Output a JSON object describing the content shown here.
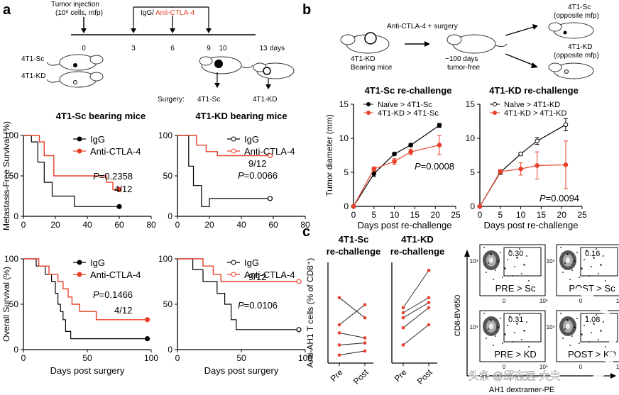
{
  "panels": {
    "a": "a",
    "b": "b",
    "c": "c"
  },
  "timeline": {
    "tumor_injection": "Tumor injection",
    "cells_line": "(10⁶ cells, mfp)",
    "treatment_igg": "IgG/",
    "treatment_anti": "Anti-CTLA-4",
    "days": [
      "0",
      "3",
      "6",
      "9",
      "10",
      "13"
    ],
    "days_unit": "days",
    "mouse_sc": "4T1-Sc",
    "mouse_kd": "4T1-KD",
    "surgery": "Surgery:",
    "surgery_sc": "4T1-Sc",
    "surgery_kd": "4T1-KD"
  },
  "schematic_b": {
    "label": "Anti-CTLA-4 + surgery",
    "left_mouse": [
      "4T1-KD",
      "Bearing mice"
    ],
    "middle": [
      "~100 days",
      "tumor-free"
    ],
    "right_top": [
      "4T1-Sc",
      "(opposite mfp)"
    ],
    "right_bottom": [
      "4T1-KD",
      "(opposite mfp)"
    ]
  },
  "colors": {
    "igg": "#000000",
    "anti": "#e8402a",
    "kd_line": "#e8402a"
  },
  "chart_data": [
    {
      "type": "line",
      "id": "mfs_sc",
      "title": "4T1-Sc bearing mice",
      "ylabel": "Metastasis-Free Survival (%)",
      "xlim": [
        0,
        80
      ],
      "ylim": [
        0,
        100
      ],
      "xticks": [
        "0",
        "20",
        "40",
        "60",
        "80"
      ],
      "yticks": [
        "0",
        "50",
        "100"
      ],
      "legend": [
        "IgG",
        "Anti-CTLA-4"
      ],
      "pvalue": "P=0.2358",
      "annotation": "4/12",
      "series": [
        {
          "name": "IgG",
          "steps": [
            [
              0,
              100
            ],
            [
              5,
              100
            ],
            [
              5,
              92
            ],
            [
              9,
              92
            ],
            [
              9,
              67
            ],
            [
              13,
              67
            ],
            [
              13,
              42
            ],
            [
              18,
              42
            ],
            [
              18,
              25
            ],
            [
              32,
              25
            ],
            [
              32,
              12
            ],
            [
              60,
              12
            ]
          ]
        },
        {
          "name": "Anti-CTLA-4",
          "steps": [
            [
              0,
              100
            ],
            [
              10,
              100
            ],
            [
              10,
              92
            ],
            [
              13,
              92
            ],
            [
              13,
              75
            ],
            [
              19,
              75
            ],
            [
              19,
              50
            ],
            [
              52,
              50
            ],
            [
              52,
              42
            ],
            [
              56,
              42
            ],
            [
              56,
              33
            ],
            [
              60,
              33
            ]
          ]
        }
      ]
    },
    {
      "type": "line",
      "id": "mfs_kd",
      "title": "4T1-KD bearing mice",
      "xlim": [
        0,
        80
      ],
      "ylim": [
        0,
        100
      ],
      "xticks": [
        "0",
        "20",
        "40",
        "60",
        "80"
      ],
      "yticks": [
        "0",
        "50",
        "100"
      ],
      "legend": [
        "IgG",
        "Anti-CTLA-4"
      ],
      "pvalue": "P=0.0066",
      "annotation": "9/12",
      "series": [
        {
          "name": "IgG",
          "steps": [
            [
              0,
              100
            ],
            [
              7,
              100
            ],
            [
              7,
              62
            ],
            [
              10,
              62
            ],
            [
              10,
              38
            ],
            [
              15,
              38
            ],
            [
              15,
              12
            ],
            [
              20,
              12
            ],
            [
              20,
              22
            ],
            [
              58,
              22
            ]
          ]
        },
        {
          "name": "Anti-CTLA-4",
          "steps": [
            [
              0,
              100
            ],
            [
              12,
              100
            ],
            [
              12,
              88
            ],
            [
              18,
              88
            ],
            [
              18,
              80
            ],
            [
              25,
              80
            ],
            [
              25,
              75
            ],
            [
              58,
              75
            ]
          ]
        }
      ]
    },
    {
      "type": "line",
      "id": "os_sc",
      "ylabel": "Overall Survival (%)",
      "xlabel": "Days post surgery",
      "xlim": [
        0,
        100
      ],
      "ylim": [
        0,
        100
      ],
      "xticks": [
        "0",
        "50",
        "100"
      ],
      "yticks": [
        "0",
        "50",
        "100"
      ],
      "legend": [
        "IgG",
        "Anti-CTLA-4"
      ],
      "pvalue": "P=0.1466",
      "annotation": "4/12",
      "series": [
        {
          "name": "IgG",
          "steps": [
            [
              0,
              100
            ],
            [
              10,
              100
            ],
            [
              10,
              92
            ],
            [
              17,
              92
            ],
            [
              17,
              83
            ],
            [
              22,
              83
            ],
            [
              22,
              75
            ],
            [
              25,
              75
            ],
            [
              25,
              62
            ],
            [
              27,
              62
            ],
            [
              27,
              50
            ],
            [
              29,
              50
            ],
            [
              29,
              42
            ],
            [
              31,
              42
            ],
            [
              31,
              33
            ],
            [
              33,
              33
            ],
            [
              33,
              20
            ],
            [
              37,
              20
            ],
            [
              37,
              12
            ],
            [
              97,
              12
            ]
          ]
        },
        {
          "name": "Anti-CTLA-4",
          "steps": [
            [
              0,
              100
            ],
            [
              12,
              100
            ],
            [
              12,
              92
            ],
            [
              20,
              92
            ],
            [
              20,
              83
            ],
            [
              27,
              83
            ],
            [
              27,
              75
            ],
            [
              31,
              75
            ],
            [
              31,
              67
            ],
            [
              35,
              67
            ],
            [
              35,
              58
            ],
            [
              38,
              58
            ],
            [
              38,
              50
            ],
            [
              44,
              50
            ],
            [
              44,
              42
            ],
            [
              57,
              42
            ],
            [
              57,
              33
            ],
            [
              97,
              33
            ]
          ]
        }
      ]
    },
    {
      "type": "line",
      "id": "os_kd",
      "xlabel": "Days post surgery",
      "xlim": [
        0,
        100
      ],
      "ylim": [
        0,
        100
      ],
      "xticks": [
        "0",
        "50",
        "100"
      ],
      "yticks": [
        "0",
        "50",
        "100"
      ],
      "legend": [
        "IgG",
        "Anti-CTLA-4"
      ],
      "pvalue": "P=0.0106",
      "annotation": "9/12",
      "series": [
        {
          "name": "IgG",
          "steps": [
            [
              0,
              100
            ],
            [
              12,
              100
            ],
            [
              12,
              88
            ],
            [
              20,
              88
            ],
            [
              20,
              75
            ],
            [
              31,
              75
            ],
            [
              31,
              62
            ],
            [
              37,
              62
            ],
            [
              37,
              50
            ],
            [
              42,
              50
            ],
            [
              42,
              33
            ],
            [
              46,
              33
            ],
            [
              46,
              22
            ],
            [
              95,
              22
            ]
          ]
        },
        {
          "name": "Anti-CTLA-4",
          "steps": [
            [
              0,
              100
            ],
            [
              20,
              100
            ],
            [
              20,
              92
            ],
            [
              28,
              92
            ],
            [
              28,
              83
            ],
            [
              34,
              83
            ],
            [
              34,
              75
            ],
            [
              95,
              75
            ]
          ]
        }
      ]
    },
    {
      "type": "line",
      "id": "rc_sc",
      "title": "4T1-Sc re-challenge",
      "ylabel": "Tumor diameter (mm)",
      "xlabel": "Days post re-challenge",
      "xlim": [
        0,
        25
      ],
      "ylim": [
        0,
        15
      ],
      "xticks": [
        "0",
        "5",
        "10",
        "15",
        "20",
        "25"
      ],
      "yticks": [
        "0",
        "5",
        "10",
        "15"
      ],
      "legend": [
        "Naïve > 4T1-Sc",
        "4T1-KD > 4T1-Sc"
      ],
      "pvalue": "P=0.0008",
      "series": [
        {
          "name": "Naïve > 4T1-Sc",
          "x": [
            0,
            5,
            10,
            14,
            21
          ],
          "y": [
            0,
            4.8,
            7.7,
            9.0,
            11.9
          ],
          "err": [
            0,
            0.4,
            0.2,
            0.2,
            0.3
          ]
        },
        {
          "name": "4T1-KD > 4T1-Sc",
          "x": [
            0,
            5,
            10,
            14,
            21
          ],
          "y": [
            0,
            5.5,
            6.6,
            8.0,
            9.0
          ],
          "err": [
            0,
            0.3,
            0.4,
            0.4,
            1.4
          ]
        }
      ]
    },
    {
      "type": "line",
      "id": "rc_kd",
      "title": "4T1-KD re-challenge",
      "xlabel": "Days post re-challenge",
      "xlim": [
        0,
        25
      ],
      "ylim": [
        0,
        15
      ],
      "xticks": [
        "0",
        "5",
        "10",
        "15",
        "20",
        "25"
      ],
      "yticks": [
        "0",
        "5",
        "10",
        "15"
      ],
      "legend": [
        "Naïve > 4T1-KD",
        "4T1-KD > 4T1-KD"
      ],
      "pvalue": "P=0.0094",
      "series": [
        {
          "name": "Naïve > 4T1-KD",
          "x": [
            0,
            5,
            10,
            14,
            21
          ],
          "y": [
            0,
            5.0,
            7.7,
            9.6,
            12.0
          ],
          "err": [
            0,
            0.3,
            0.2,
            0.5,
            0.9
          ]
        },
        {
          "name": "4T1-KD > 4T1-KD",
          "x": [
            0,
            5,
            10,
            14,
            21
          ],
          "y": [
            0,
            5.1,
            5.5,
            6.0,
            6.1
          ],
          "err": [
            0,
            0.3,
            0.9,
            2.0,
            3.5
          ]
        }
      ]
    },
    {
      "type": "scatter",
      "id": "ah1_sc",
      "title": [
        "4T1-Sc",
        "re-challenge"
      ],
      "ylabel": "Anti-AH1 T cells (% of CD8⁺)",
      "categories": [
        "Pre",
        "Post"
      ],
      "ylim": [
        0,
        1
      ],
      "pairs": [
        [
          0.65,
          0.45
        ],
        [
          0.38,
          0.58
        ],
        [
          0.3,
          0.25
        ],
        [
          0.18,
          0.2
        ],
        [
          0.08,
          0.12
        ]
      ]
    },
    {
      "type": "scatter",
      "id": "ah1_kd",
      "title": [
        "4T1-KD",
        "re-challenge"
      ],
      "categories": [
        "Pre",
        "Post"
      ],
      "ylim": [
        0,
        1
      ],
      "pairs": [
        [
          0.55,
          0.92
        ],
        [
          0.5,
          0.65
        ],
        [
          0.45,
          0.6
        ],
        [
          0.35,
          0.55
        ],
        [
          0.18,
          0.38
        ]
      ]
    }
  ],
  "flow": {
    "ylabel": "CD8-BV650",
    "xlabel": "AH1 dextramer-PE",
    "tick_labels": {
      "x0": "0",
      "x5": "10⁵",
      "y4": "10⁴"
    },
    "plots": [
      {
        "label": "PRE > Sc",
        "value": "0.30"
      },
      {
        "label": "POST > Sc",
        "value": "0.16"
      },
      {
        "label": "PRE > KD",
        "value": "0.31"
      },
      {
        "label": "POST > KD",
        "value": "1.08"
      }
    ]
  },
  "watermark": "头条 @邱志远·大夫"
}
